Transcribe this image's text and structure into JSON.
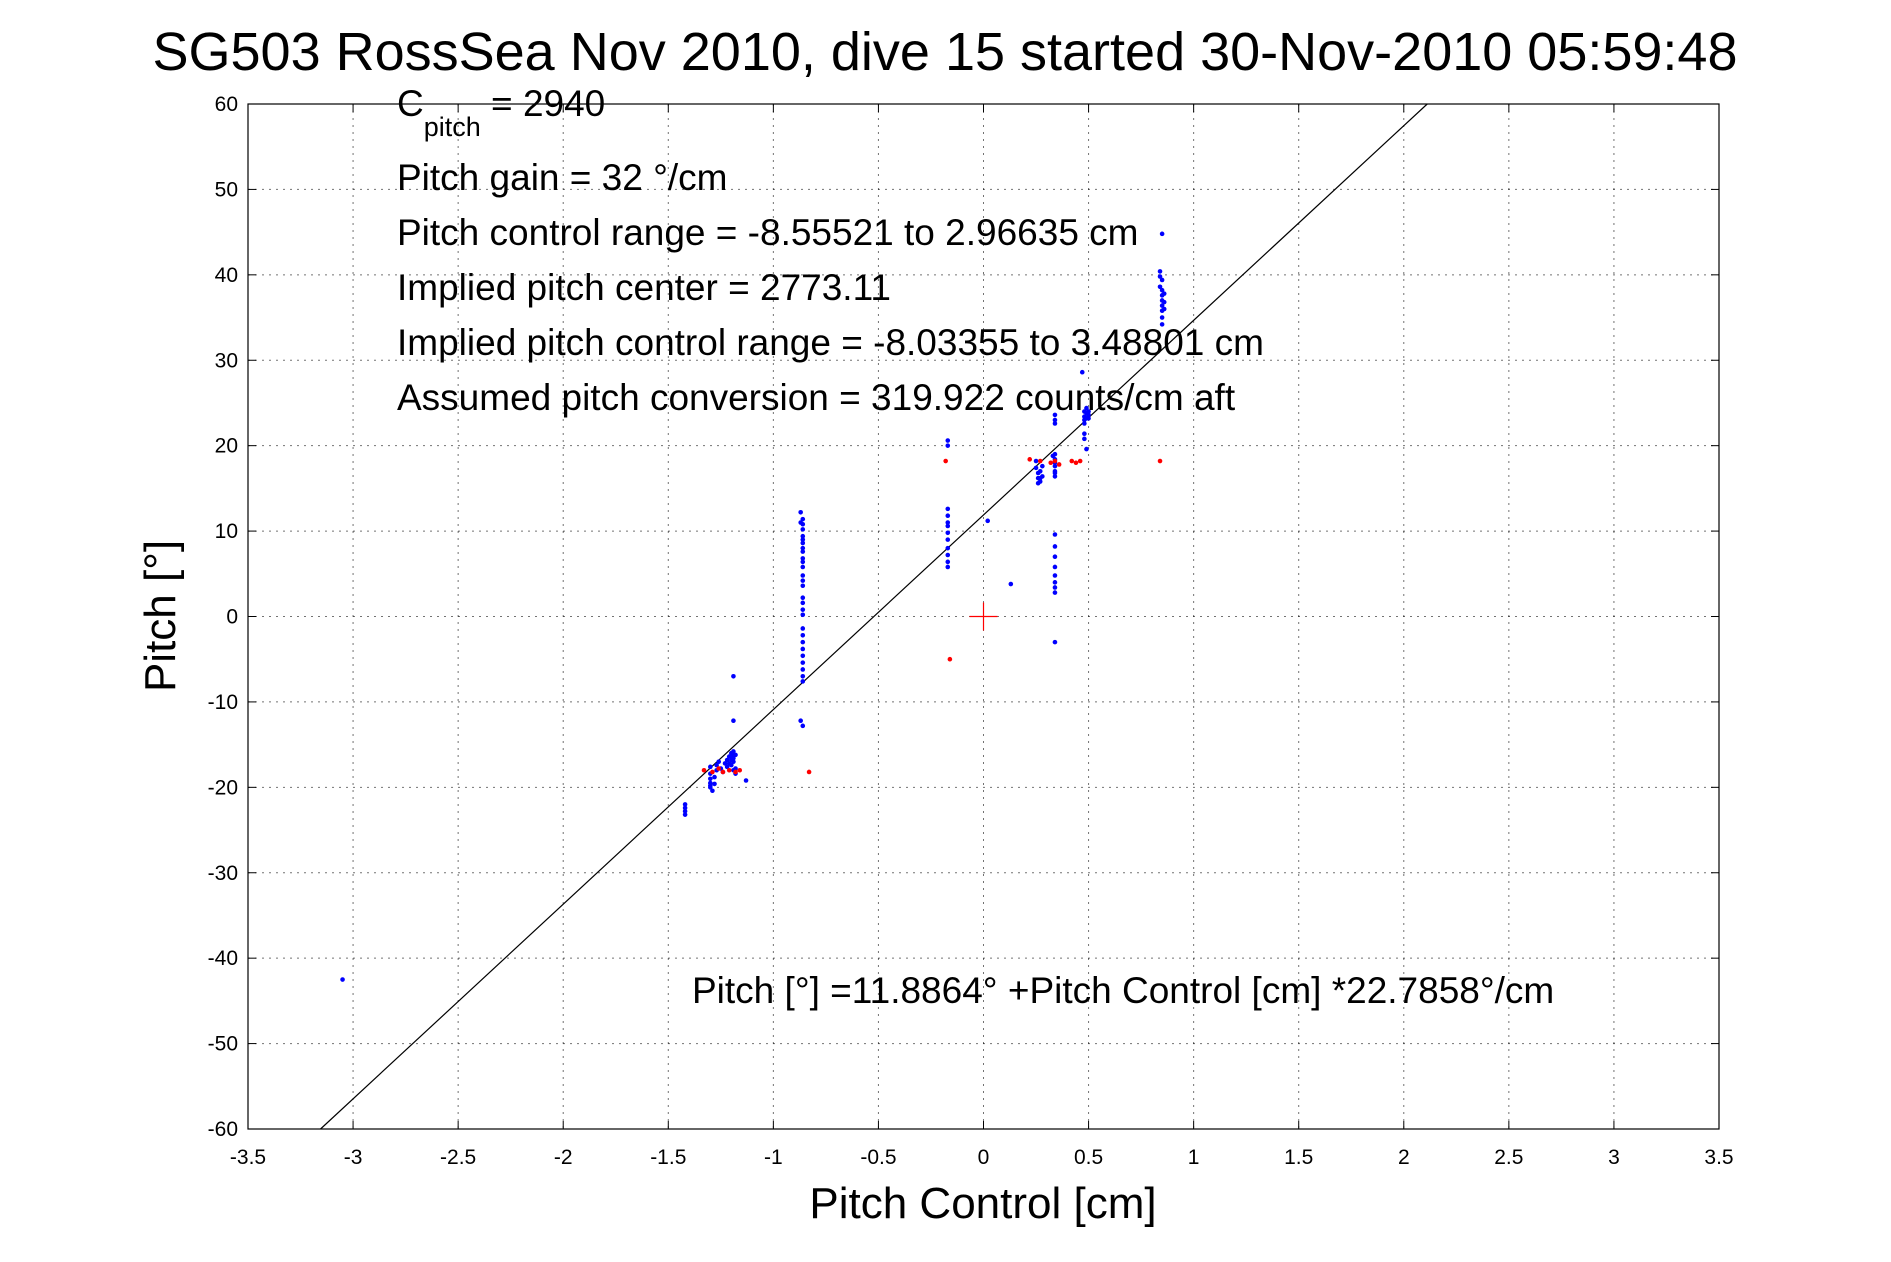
{
  "chart_data": {
    "type": "scatter",
    "title": "SG503 RossSea Nov 2010, dive 15 started 30-Nov-2010 05:59:48",
    "xlabel": "Pitch Control [cm]",
    "ylabel": "Pitch [°]",
    "xlim": [
      -3.5,
      3.5
    ],
    "ylim": [
      -60,
      60
    ],
    "xticks": [
      "-3.5",
      "-3",
      "-2.5",
      "-2",
      "-1.5",
      "-1",
      "-0.5",
      "0",
      "0.5",
      "1",
      "1.5",
      "2",
      "2.5",
      "3",
      "3.5"
    ],
    "yticks": [
      "60",
      "50",
      "40",
      "30",
      "20",
      "10",
      "0",
      "-10",
      "-20",
      "-30",
      "-40",
      "-50",
      "-60"
    ],
    "xtick_values": [
      -3.5,
      -3,
      -2.5,
      -2,
      -1.5,
      -1,
      -0.5,
      0,
      0.5,
      1,
      1.5,
      2,
      2.5,
      3,
      3.5
    ],
    "ytick_values": [
      60,
      50,
      40,
      30,
      20,
      10,
      0,
      -10,
      -20,
      -30,
      -40,
      -50,
      -60
    ],
    "grid": true,
    "colors": {
      "blue": "#0000ff",
      "red": "#ff0000",
      "line": "#000000"
    },
    "annotations": {
      "c_pitch_main": "C",
      "c_pitch_sub": "pitch",
      "c_pitch_value": " = 2940",
      "pitch_gain": "Pitch gain = 32 °/cm",
      "pitch_control_range": "Pitch control range = -8.55521 to 2.96635 cm",
      "implied_pitch_center": "Implied pitch center = 2773.11",
      "implied_pitch_control_range": "Implied pitch control range = -8.03355 to 3.48801 cm",
      "assumed_pitch_conversion": "Assumed pitch conversion = 319.922 counts/cm aft",
      "fit_equation": "Pitch [°] =11.8864° +Pitch Control [cm] *22.7858°/cm"
    },
    "fit_line": {
      "intercept": 11.8864,
      "slope": 22.7858
    },
    "center_marker": {
      "x": 0,
      "y": 0
    },
    "series_blue": {
      "x": [
        -3.05,
        -1.42,
        -1.42,
        -1.42,
        -1.42,
        -1.3,
        -1.3,
        -1.3,
        -1.3,
        -1.3,
        -1.3,
        -1.29,
        -1.28,
        -1.28,
        -1.27,
        -1.27,
        -1.26,
        -1.25,
        -1.24,
        -1.23,
        -1.22,
        -1.22,
        -1.21,
        -1.21,
        -1.2,
        -1.2,
        -1.2,
        -1.2,
        -1.19,
        -1.19,
        -1.19,
        -1.19,
        -1.19,
        -1.19,
        -1.18,
        -1.18,
        -1.13,
        -1.19,
        -1.18,
        -0.87,
        -0.87,
        -0.86,
        -0.86,
        -0.86,
        -0.86,
        -0.86,
        -0.86,
        -0.86,
        -0.86,
        -0.86,
        -0.86,
        -0.86,
        -0.86,
        -0.86,
        -0.86,
        -0.86,
        -0.86,
        -0.86,
        -0.86,
        -0.86,
        -0.86,
        -0.86,
        -0.86,
        -0.86,
        -0.86,
        -0.86,
        -0.86,
        -0.86,
        -0.86,
        -0.87,
        -0.17,
        -0.17,
        -0.17,
        -0.17,
        -0.17,
        -0.17,
        -0.17,
        -0.17,
        -0.17,
        -0.17,
        -0.17,
        -0.17,
        0.02,
        0.13,
        0.25,
        0.25,
        0.26,
        0.26,
        0.26,
        0.27,
        0.27,
        0.27,
        0.28,
        0.28,
        0.33,
        0.34,
        0.34,
        0.34,
        0.34,
        0.34,
        0.34,
        0.34,
        0.34,
        0.34,
        0.34,
        0.34,
        0.34,
        0.34,
        0.34,
        0.34,
        0.34,
        0.34,
        0.34,
        0.34,
        0.47,
        0.48,
        0.48,
        0.48,
        0.48,
        0.48,
        0.48,
        0.49,
        0.49,
        0.49,
        0.49,
        0.5,
        0.5,
        0.5,
        0.84,
        0.84,
        0.84,
        0.85,
        0.85,
        0.85,
        0.85,
        0.85,
        0.85,
        0.85,
        0.85,
        0.85,
        0.86,
        0.86,
        0.86
      ],
      "y": [
        -42.5,
        -23.2,
        -22.8,
        -22.4,
        -22.0,
        -17.6,
        -18.4,
        -19.0,
        -19.5,
        -20.0,
        -19.8,
        -20.4,
        -18.8,
        -19.6,
        -17.4,
        -18.0,
        -17.0,
        -17.8,
        -18.2,
        -17.2,
        -17.6,
        -16.8,
        -16.4,
        -17.2,
        -16.0,
        -16.4,
        -16.8,
        -17.4,
        -15.8,
        -16.2,
        -16.6,
        -17.0,
        -12.2,
        -7.0,
        -17.8,
        -18.4,
        -19.2,
        -18.0,
        -16.2,
        12.2,
        11.0,
        10.2,
        9.4,
        8.6,
        7.6,
        6.8,
        5.8,
        4.8,
        3.6,
        2.2,
        0.8,
        -1.4,
        -2.2,
        -3.0,
        -3.8,
        -4.6,
        -5.4,
        -6.2,
        -7.0,
        -7.6,
        11.4,
        10.8,
        9.0,
        8.0,
        6.4,
        4.2,
        1.6,
        0.2,
        -12.8,
        -12.2,
        20.6,
        20.0,
        12.6,
        11.8,
        10.6,
        9.8,
        9.0,
        8.0,
        7.2,
        6.4,
        5.8,
        11.0,
        11.2,
        3.8,
        18.2,
        17.4,
        16.8,
        16.2,
        15.6,
        17.0,
        16.2,
        15.8,
        17.6,
        16.4,
        18.8,
        19.0,
        18.0,
        17.0,
        16.4,
        9.6,
        8.2,
        7.0,
        5.8,
        4.8,
        4.0,
        3.4,
        2.8,
        -3.0,
        23.6,
        23.0,
        22.6,
        18.4,
        17.6,
        16.8,
        28.6,
        24.0,
        23.4,
        23.0,
        22.6,
        21.4,
        20.8,
        24.4,
        23.8,
        23.2,
        19.6,
        24.0,
        23.6,
        23.2,
        40.4,
        39.8,
        38.6,
        39.4,
        38.2,
        37.6,
        37.0,
        36.4,
        35.8,
        35.0,
        34.2,
        44.8,
        37.8,
        36.8,
        36.0
      ]
    },
    "series_red": {
      "x": [
        -1.33,
        -1.29,
        -1.26,
        -1.24,
        -1.21,
        -1.18,
        -1.16,
        -0.83,
        -0.18,
        -0.16,
        0.22,
        0.27,
        0.32,
        0.34,
        0.36,
        0.42,
        0.44,
        0.46,
        0.84
      ],
      "y": [
        -18.0,
        -18.2,
        -17.8,
        -18.2,
        -18.0,
        -18.2,
        -18.0,
        -18.2,
        18.2,
        -5.0,
        18.4,
        18.2,
        18.0,
        18.2,
        17.8,
        18.2,
        18.0,
        18.2,
        18.2
      ]
    }
  }
}
